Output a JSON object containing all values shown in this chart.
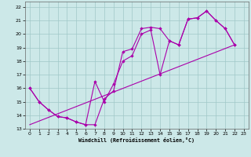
{
  "xlabel": "Windchill (Refroidissement éolien,°C)",
  "bg_color": "#cce8e8",
  "grid_color": "#a0c8c8",
  "line_color": "#aa00aa",
  "xlim": [
    -0.5,
    23.5
  ],
  "ylim": [
    13,
    22.4
  ],
  "xticks": [
    0,
    1,
    2,
    3,
    4,
    5,
    6,
    7,
    8,
    9,
    10,
    11,
    12,
    13,
    14,
    15,
    16,
    17,
    18,
    19,
    20,
    21,
    22,
    23
  ],
  "yticks": [
    13,
    14,
    15,
    16,
    17,
    18,
    19,
    20,
    21,
    22
  ],
  "line1_x": [
    0,
    1,
    2,
    3,
    4,
    5,
    6,
    7,
    8,
    9,
    10,
    11,
    12,
    13,
    14,
    15,
    16,
    17,
    18,
    19,
    20,
    21,
    22
  ],
  "line1_y": [
    16.0,
    15.0,
    14.4,
    13.9,
    13.8,
    13.5,
    13.3,
    13.3,
    15.2,
    15.8,
    18.7,
    18.9,
    20.4,
    20.5,
    20.4,
    19.5,
    19.2,
    21.1,
    21.2,
    21.7,
    21.0,
    20.4,
    19.2
  ],
  "line2_x": [
    0,
    1,
    2,
    3,
    4,
    5,
    6,
    7,
    8,
    9,
    10,
    11,
    12,
    13,
    14,
    15,
    16,
    17,
    18,
    19,
    20,
    21,
    22
  ],
  "line2_y": [
    16.0,
    15.0,
    14.4,
    13.9,
    13.8,
    13.5,
    13.3,
    16.5,
    15.0,
    16.3,
    18.0,
    18.4,
    20.0,
    20.3,
    17.0,
    19.5,
    19.2,
    21.1,
    21.2,
    21.7,
    21.0,
    20.4,
    19.2
  ],
  "line3_x": [
    0,
    22
  ],
  "line3_y": [
    13.3,
    19.2
  ]
}
